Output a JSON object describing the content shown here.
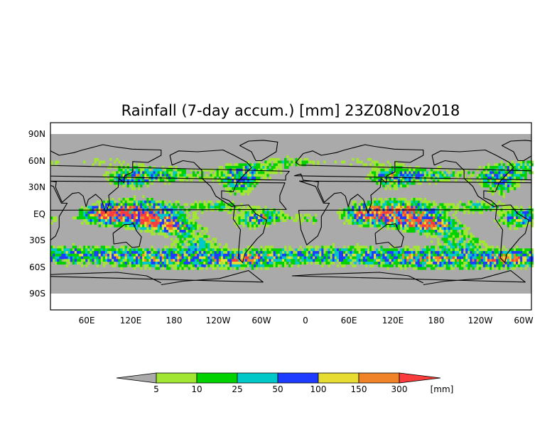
{
  "title": "Rainfall (7-day accum.) [mm] 23Z08Nov2018",
  "lat_ticks": [
    "90N",
    "60N",
    "30N",
    "EQ",
    "30S",
    "60S",
    "90S"
  ],
  "lon_ticks": [
    "60E",
    "120E",
    "180",
    "120W",
    "60W",
    "0",
    "60E",
    "120E",
    "180",
    "120W",
    "60W"
  ],
  "colorbar": {
    "bins": [
      {
        "label": "5",
        "color": "#a0e632"
      },
      {
        "label": "10",
        "color": "#00d200"
      },
      {
        "label": "25",
        "color": "#00c8c8"
      },
      {
        "label": "50",
        "color": "#1e3cff"
      },
      {
        "label": "100",
        "color": "#e6dc32"
      },
      {
        "label": "150",
        "color": "#f08228"
      },
      {
        "label": "300",
        "color": ""
      }
    ],
    "under_color": "#aaaaaa",
    "over_color": "#fa3c3c",
    "unit": "[mm]"
  },
  "map": {
    "ocean_color": "#aaaaaa",
    "coastline_color": "#000000",
    "projection": "cylindrical equidistant, longitude repeated (~30E to ~55W of next cycle)"
  }
}
